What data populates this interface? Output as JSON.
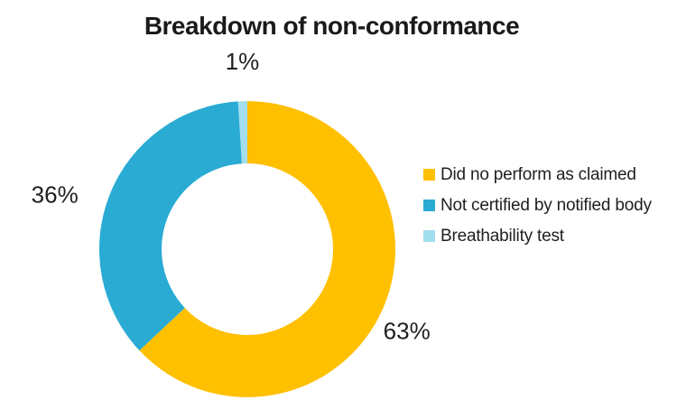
{
  "chart": {
    "title": "Breakdown of non-conformance"
  },
  "chart_data": {
    "type": "pie",
    "subtype": "donut",
    "title": "Breakdown of non-conformance",
    "categories": [
      "Did no perform as claimed",
      "Not certified by notified body",
      "Breathability test"
    ],
    "values": [
      63,
      36,
      1
    ],
    "unit": "%",
    "data_labels": [
      "63%",
      "36%",
      "1%"
    ],
    "colors": [
      "#FFC000",
      "#29ABD4",
      "#A3DEEE"
    ],
    "title_color": "#1a1a1a",
    "label_color": "#1f1f1f",
    "background": "#FFFFFF",
    "hole_ratio": 0.58,
    "start_angle_deg": 0,
    "direction": "clockwise",
    "legend_position": "right",
    "grid": false
  }
}
